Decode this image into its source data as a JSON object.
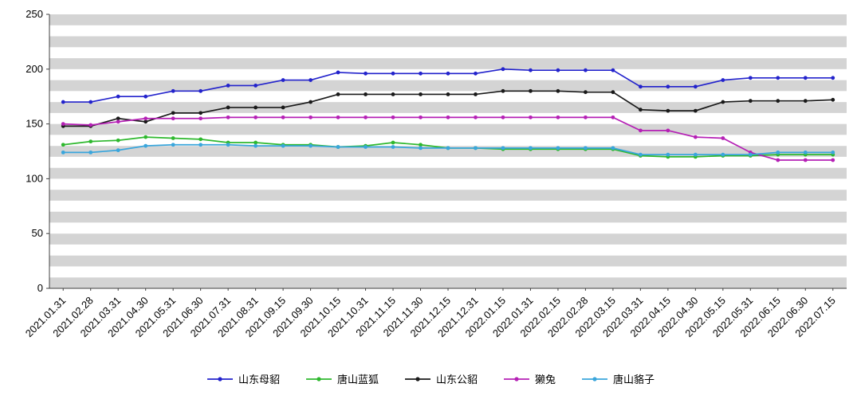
{
  "chart_data": {
    "type": "line",
    "title": "",
    "xlabel": "",
    "ylabel": "",
    "ylim": [
      0,
      250
    ],
    "ytick_interval": 50,
    "band_interval": 10,
    "band_color": "#d4d4d4",
    "band_alt_color": "#ffffff",
    "axis_color": "#404040",
    "legend_position": "bottom",
    "grid": "horizontal-bands",
    "categories": [
      "2021.01.31",
      "2021.02.28",
      "2021.03.31",
      "2021.04.30",
      "2021.05.31",
      "2021.06.30",
      "2021.07.31",
      "2021.08.31",
      "2021.09.15",
      "2021.09.30",
      "2021.10.15",
      "2021.10.31",
      "2021.11.15",
      "2021.11.30",
      "2021.12.15",
      "2021.12.31",
      "2022.01.15",
      "2022.01.31",
      "2022.02.15",
      "2022.02.28",
      "2022.03.15",
      "2022.03.31",
      "2022.04.15",
      "2022.04.30",
      "2022.05.15",
      "2022.05.31",
      "2022.06.15",
      "2022.06.30",
      "2022.07.15"
    ],
    "series": [
      {
        "name": "山东母貂",
        "color": "#2323cc",
        "values": [
          170,
          170,
          175,
          175,
          180,
          180,
          185,
          185,
          190,
          190,
          197,
          196,
          196,
          196,
          196,
          196,
          200,
          199,
          199,
          199,
          199,
          184,
          184,
          184,
          190,
          192,
          192,
          192,
          192
        ]
      },
      {
        "name": "唐山蓝狐",
        "color": "#2eb82e",
        "values": [
          131,
          134,
          135,
          138,
          137,
          136,
          133,
          133,
          131,
          131,
          129,
          130,
          133,
          131,
          128,
          128,
          127,
          127,
          127,
          127,
          127,
          121,
          120,
          120,
          121,
          121,
          122,
          122,
          122
        ]
      },
      {
        "name": "山东公貂",
        "color": "#1a1a1a",
        "values": [
          148,
          148,
          155,
          152,
          160,
          160,
          165,
          165,
          165,
          170,
          177,
          177,
          177,
          177,
          177,
          177,
          180,
          180,
          180,
          179,
          179,
          163,
          162,
          162,
          170,
          171,
          171,
          171,
          172
        ]
      },
      {
        "name": "獭兔",
        "color": "#b520b5",
        "values": [
          150,
          149,
          152,
          155,
          155,
          155,
          156,
          156,
          156,
          156,
          156,
          156,
          156,
          156,
          156,
          156,
          156,
          156,
          156,
          156,
          156,
          144,
          144,
          138,
          137,
          124,
          117,
          117,
          117
        ]
      },
      {
        "name": "唐山貉子",
        "color": "#3aa6dc",
        "values": [
          124,
          124,
          126,
          130,
          131,
          131,
          131,
          130,
          130,
          130,
          129,
          129,
          129,
          128,
          128,
          128,
          128,
          128,
          128,
          128,
          128,
          122,
          122,
          122,
          122,
          122,
          124,
          124,
          124
        ]
      }
    ]
  }
}
